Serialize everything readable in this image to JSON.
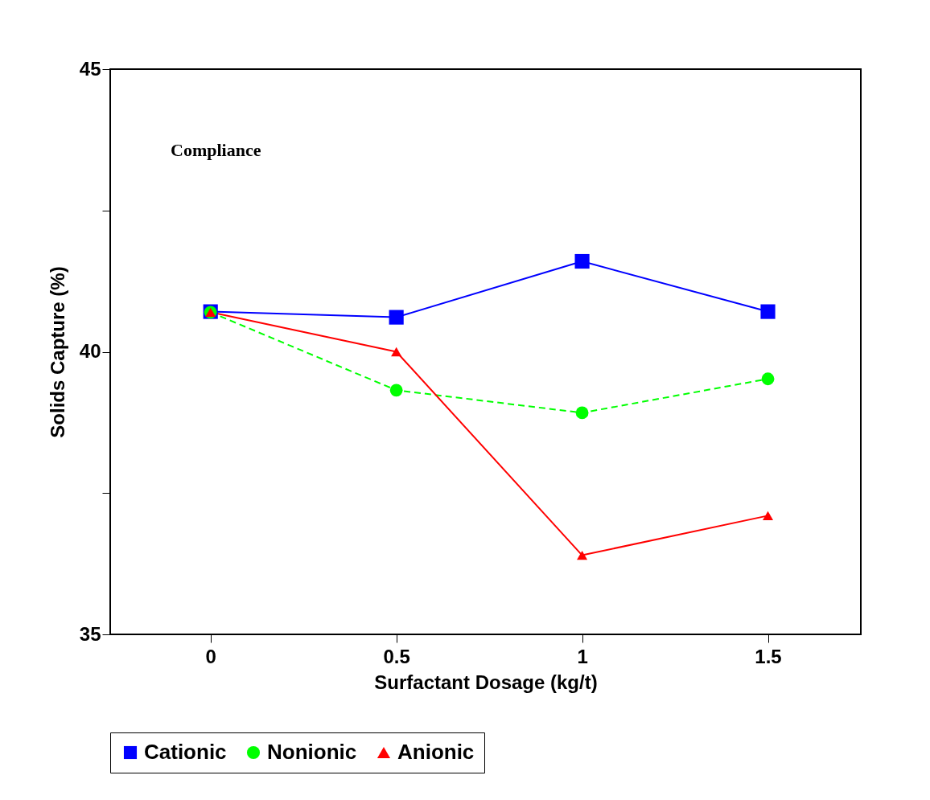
{
  "chart_data": {
    "type": "line",
    "xlabel": "Surfactant Dosage (kg/t)",
    "ylabel": "Solids Capture (%)",
    "annotations": [
      "Compliance"
    ],
    "x": [
      0,
      0.5,
      1,
      1.5
    ],
    "xlim": [
      -0.27,
      1.75
    ],
    "xticks": [
      0,
      0.5,
      1,
      1.5
    ],
    "ylim": [
      35,
      45
    ],
    "yticks": [
      35,
      {
        "value": 37.5,
        "label": null
      },
      40,
      {
        "value": 42.5,
        "label": null
      },
      45
    ],
    "grid": false,
    "legend": "bottom",
    "series": [
      {
        "name": "Cationic",
        "color": "#0000ff",
        "marker": "square",
        "line_style": "solid",
        "values": [
          40.71,
          40.61,
          41.6,
          40.71
        ]
      },
      {
        "name": "Nonionic",
        "color": "#00ff00",
        "marker": "circle",
        "line_style": "dashed",
        "values": [
          40.7,
          39.32,
          38.92,
          39.52
        ]
      },
      {
        "name": "Anionic",
        "color": "#ff0000",
        "marker": "triangle",
        "line_style": "solid",
        "values": [
          40.7,
          40.0,
          36.4,
          37.1
        ]
      }
    ]
  }
}
